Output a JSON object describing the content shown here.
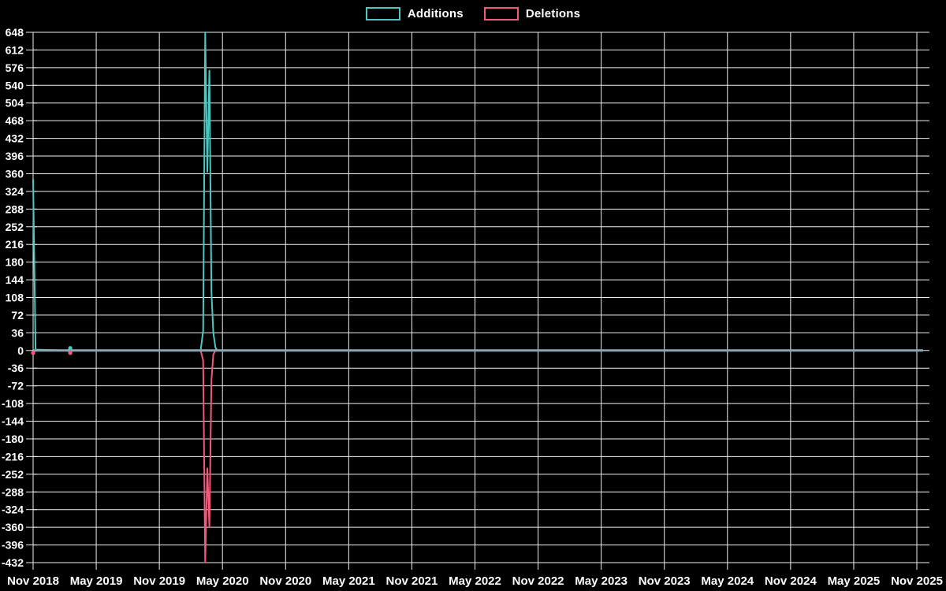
{
  "legend": {
    "items": [
      {
        "label": "Additions",
        "color": "#4BC8C0"
      },
      {
        "label": "Deletions",
        "color": "#F4587A"
      }
    ]
  },
  "chart_data": {
    "type": "line",
    "title": "",
    "background": "#000000",
    "grid_color": "#EFEFEF",
    "text_color": "#FFFFFF",
    "legend_position": "top-center",
    "x_axis": {
      "start_date": "2018-11-01",
      "months_span": 84,
      "tick_labels": [
        "Nov 2018",
        "May 2019",
        "Nov 2019",
        "May 2020",
        "Nov 2020",
        "May 2021",
        "Nov 2021",
        "May 2022",
        "Nov 2022",
        "May 2023",
        "Nov 2023",
        "May 2024",
        "Nov 2024",
        "May 2025",
        "Nov 2025"
      ]
    },
    "y_axis": {
      "min": -432,
      "max": 648,
      "step": 36,
      "tick_labels": [
        "648",
        "612",
        "576",
        "540",
        "504",
        "468",
        "432",
        "396",
        "360",
        "324",
        "288",
        "252",
        "216",
        "180",
        "144",
        "108",
        "72",
        "36",
        "0",
        "-36",
        "-72",
        "-108",
        "-144",
        "-180",
        "-216",
        "-252",
        "-288",
        "-324",
        "-360",
        "-396",
        "-432"
      ]
    },
    "zero_line": {
      "color": "#8CA5B1",
      "width": 3
    },
    "series": [
      {
        "name": "Additions",
        "color": "#4BC8C0",
        "points": [
          [
            "2018-11-01",
            348
          ],
          [
            "2018-11-08",
            2
          ],
          [
            "2019-02-10",
            0
          ],
          [
            "2019-02-17",
            5
          ],
          [
            "2019-02-24",
            0
          ],
          [
            "2020-02-29",
            0
          ],
          [
            "2020-03-06",
            40
          ],
          [
            "2020-03-12",
            648
          ],
          [
            "2020-03-18",
            364
          ],
          [
            "2020-03-24",
            570
          ],
          [
            "2020-03-30",
            120
          ],
          [
            "2020-04-05",
            36
          ],
          [
            "2020-04-11",
            6
          ],
          [
            "2020-04-17",
            0
          ],
          [
            "2025-11-08",
            0
          ]
        ]
      },
      {
        "name": "Deletions",
        "color": "#F4587A",
        "points": [
          [
            "2018-11-01",
            -5
          ],
          [
            "2018-11-08",
            0
          ],
          [
            "2019-02-10",
            0
          ],
          [
            "2019-02-17",
            -5
          ],
          [
            "2019-02-24",
            0
          ],
          [
            "2020-02-29",
            0
          ],
          [
            "2020-03-06",
            -20
          ],
          [
            "2020-03-12",
            -432
          ],
          [
            "2020-03-18",
            -240
          ],
          [
            "2020-03-24",
            -360
          ],
          [
            "2020-03-30",
            -60
          ],
          [
            "2020-04-05",
            -8
          ],
          [
            "2020-04-11",
            0
          ],
          [
            "2025-11-08",
            0
          ]
        ]
      }
    ],
    "markers": [
      {
        "date": "2018-11-01",
        "value": -5,
        "series": "Deletions",
        "color": "#F4587A"
      },
      {
        "date": "2019-02-17",
        "value": 5,
        "series": "Additions",
        "color": "#4BC8C0"
      },
      {
        "date": "2019-02-17",
        "value": -5,
        "series": "Deletions",
        "color": "#F4587A"
      }
    ]
  }
}
